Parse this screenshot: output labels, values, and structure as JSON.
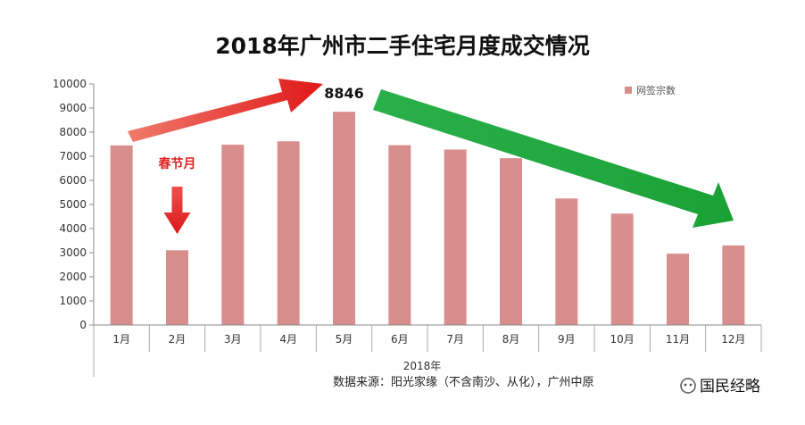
{
  "chart_data": {
    "type": "bar",
    "title": "2018年广州市二手住宅月度成交情况",
    "categories": [
      "1月",
      "2月",
      "3月",
      "4月",
      "5月",
      "6月",
      "7月",
      "8月",
      "9月",
      "10月",
      "11月",
      "12月"
    ],
    "series": [
      {
        "name": "网签宗数",
        "values": [
          7450,
          3100,
          7480,
          7620,
          8846,
          7460,
          7280,
          6920,
          5250,
          4620,
          2960,
          3300
        ]
      }
    ],
    "ylim": [
      0,
      10000
    ],
    "yticks": [
      0,
      1000,
      2000,
      3000,
      4000,
      5000,
      6000,
      7000,
      8000,
      9000,
      10000
    ],
    "xlabel": "2018年",
    "ylabel": "",
    "legend": "top-right",
    "grid": false,
    "bar_color": "#d98e8e",
    "annotations": {
      "peak_label": "8846",
      "holiday_label": "春节月"
    },
    "arrows": {
      "up_color": "#e02020",
      "down_color": "#1fa83a",
      "holiday_arrow_color": "#e02020"
    }
  },
  "source_note": "数据来源：阳光家缘（不含南沙、从化），广州中原",
  "watermark": "国民经略"
}
